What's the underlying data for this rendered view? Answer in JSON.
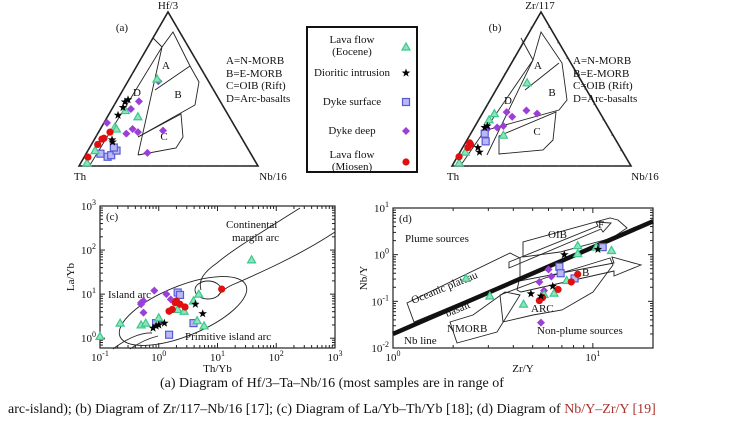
{
  "figure": {
    "caption_line1": "(a) Diagram of Hf/3–Ta–Nb/16 (most samples are in range of",
    "caption_line2_prefix": "arc-island); (b) Diagram of Zr/117–Nb/16 [17]; (c) Diagram of La/Yb–Th/Yb [18]; (d) Diagram of ",
    "caption_line2_highlight": "Nb/Y–Zr/Y [19]"
  },
  "colors": {
    "eocene": "#3cc88c",
    "diorite": "#000000",
    "dyke_surface": "#5a5ad8",
    "dyke_deep": "#9b3fd6",
    "miosen": "#e01010"
  },
  "legend": {
    "items": [
      {
        "key": "eocene",
        "line1": "Lava flow",
        "line2": "(Eocene)",
        "marker": "triangle"
      },
      {
        "key": "diorite",
        "line1": "Dioritic intrusion",
        "line2": "",
        "marker": "star"
      },
      {
        "key": "dyke_surface",
        "line1": "Dyke surface",
        "line2": "",
        "marker": "square"
      },
      {
        "key": "dyke_deep",
        "line1": "Dyke deep",
        "line2": "",
        "marker": "diamond"
      },
      {
        "key": "miosen",
        "line1": "Lava flow",
        "line2": "(Miosen)",
        "marker": "circle"
      }
    ]
  },
  "chart_data": [
    {
      "type": "ternary",
      "panel": "(a)",
      "apex_top": "Hf/3",
      "apex_left": "Th",
      "apex_right": "Nb/16",
      "point_format": [
        "Hf/3 fraction",
        "Nb/16 fraction"
      ],
      "key": [
        "A=N-MORB",
        "B=E-MORB",
        "C=OIB (Rift)",
        "D=Arc-basalts"
      ],
      "field_labels": [
        "A",
        "B",
        "C",
        "D"
      ],
      "series": {
        "eocene": [
          [
            0.25,
            0.075
          ],
          [
            0.32,
            0.17
          ],
          [
            0.565,
            0.155
          ],
          [
            0.1,
            0.04
          ],
          [
            0.02,
            0.035
          ],
          [
            0.36,
            0.08
          ],
          [
            0.24,
            0.09
          ]
        ],
        "diorite": [
          [
            0.416,
            0.05
          ],
          [
            0.43,
            0.06
          ],
          [
            0.33,
            0.054
          ],
          [
            0.156,
            0.11
          ],
          [
            0.38,
            0.057
          ],
          [
            0.17,
            0.1
          ]
        ],
        "dyke_surface": [
          [
            0.06,
            0.13
          ],
          [
            0.07,
            0.145
          ],
          [
            0.1,
            0.16
          ],
          [
            0.12,
            0.135
          ],
          [
            0.08,
            0.08
          ]
        ],
        "dyke_deep": [
          [
            0.55,
            0.17
          ],
          [
            0.42,
            0.126
          ],
          [
            0.37,
            0.106
          ],
          [
            0.28,
            0.017
          ],
          [
            0.21,
            0.16
          ],
          [
            0.24,
            0.18
          ],
          [
            0.22,
            0.22
          ],
          [
            0.23,
            0.355
          ],
          [
            0.085,
            0.34
          ],
          [
            0.12,
            0.14
          ]
        ],
        "miosen": [
          [
            0.22,
            0.064
          ],
          [
            0.175,
            0.041
          ],
          [
            0.14,
            0.035
          ],
          [
            0.058,
            0.021
          ],
          [
            0.18,
            0.05
          ]
        ]
      }
    },
    {
      "type": "ternary",
      "panel": "(b)",
      "apex_top": "Zr/117",
      "apex_left": "Th",
      "apex_right": "Nb/16",
      "point_format": [
        "Zr/117 fraction",
        "Nb/16 fraction"
      ],
      "key": [
        "A=N-MORB",
        "B=E-MORB",
        "C=OIB (Rift)",
        "D=Arc-basalts"
      ],
      "field_labels": [
        "A",
        "B",
        "C",
        "D"
      ],
      "series": {
        "eocene": [
          [
            0.54,
            0.155
          ],
          [
            0.34,
            0.07
          ],
          [
            0.2,
            0.19
          ],
          [
            0.09,
            0.03
          ],
          [
            0.02,
            0.03
          ],
          [
            0.3,
            0.06
          ]
        ],
        "diorite": [
          [
            0.25,
            0.06
          ],
          [
            0.09,
            0.11
          ],
          [
            0.12,
            0.086
          ],
          [
            0.26,
            0.07
          ]
        ],
        "dyke_surface": [
          [
            0.21,
            0.08
          ],
          [
            0.16,
            0.11
          ]
        ],
        "dyke_deep": [
          [
            0.35,
            0.134
          ],
          [
            0.36,
            0.24
          ],
          [
            0.34,
            0.31
          ],
          [
            0.32,
            0.18
          ],
          [
            0.25,
            0.13
          ],
          [
            0.24,
            0.08
          ],
          [
            0.26,
            0.16
          ]
        ],
        "miosen": [
          [
            0.15,
            0.025
          ],
          [
            0.12,
            0.03
          ],
          [
            0.06,
            0.01
          ],
          [
            0.14,
            0.035
          ]
        ]
      }
    },
    {
      "type": "scatter",
      "panel": "(c)",
      "xlabel": "Th/Yb",
      "ylabel": "La/Yb",
      "xscale": "log",
      "yscale": "log",
      "xlim": [
        0.1,
        1000
      ],
      "ylim": [
        0.6,
        1000
      ],
      "xtick_exponents": [
        -1,
        0,
        1,
        2,
        3
      ],
      "ytick_exponents": [
        0,
        1,
        2,
        3
      ],
      "tick_base": "10",
      "annotations": [
        "Continental",
        "margin arc",
        "Island arc",
        "Primitive island arc"
      ],
      "series": {
        "eocene": [
          [
            0.1,
            1.1
          ],
          [
            0.22,
            2.2
          ],
          [
            38,
            60
          ],
          [
            0.5,
            2
          ],
          [
            0.6,
            2.2
          ],
          [
            1.0,
            2.9
          ],
          [
            2.1,
            4.5
          ],
          [
            2.7,
            4.1
          ],
          [
            3.9,
            7
          ],
          [
            4.8,
            10
          ],
          [
            4.5,
            2.5
          ],
          [
            5.9,
            1.9
          ]
        ],
        "diorite": [
          [
            0.8,
            1.7
          ],
          [
            1.0,
            2
          ],
          [
            1.25,
            2.2
          ],
          [
            4.2,
            5.9
          ],
          [
            5.6,
            3.6
          ],
          [
            0.9,
            1.9
          ]
        ],
        "dyke_surface": [
          [
            1.5,
            1.2
          ],
          [
            2.1,
            10.9
          ],
          [
            2.3,
            9.6
          ],
          [
            3.9,
            2.2
          ],
          [
            0.9,
            2.2
          ]
        ],
        "dyke_deep": [
          [
            0.5,
            6.4
          ],
          [
            0.55,
            7
          ],
          [
            0.84,
            12
          ],
          [
            1.35,
            10
          ],
          [
            1.6,
            7.6
          ],
          [
            0.55,
            3.8
          ],
          [
            1.05,
            2.4
          ],
          [
            0.5,
            5.9
          ]
        ],
        "miosen": [
          [
            11.8,
            13
          ],
          [
            1.9,
            6.4
          ],
          [
            1.5,
            4.1
          ],
          [
            1.7,
            4.5
          ],
          [
            2.3,
            5.9
          ],
          [
            2.8,
            5.1
          ],
          [
            2.0,
            7
          ]
        ]
      }
    },
    {
      "type": "scatter",
      "panel": "(d)",
      "xlabel": "Zr/Y",
      "ylabel": "Nb/Y",
      "xscale": "log",
      "yscale": "log",
      "xlim": [
        1,
        20
      ],
      "ylim": [
        0.01,
        10
      ],
      "xtick_exponents": [
        0,
        1
      ],
      "ytick_exponents": [
        -2,
        -1,
        0,
        1
      ],
      "tick_base": "10",
      "annotations": [
        "Plume sources",
        "OIB",
        "F",
        "Oceanic plateau",
        "basalt",
        "NMORB",
        "ARC",
        "Non-plume sources",
        "Nb line",
        "B"
      ],
      "nb_line": [
        [
          1,
          0.02
        ],
        [
          20,
          5.2
        ]
      ],
      "series": {
        "eocene": [
          [
            2.32,
            0.31
          ],
          [
            3.05,
            0.13
          ],
          [
            4.5,
            0.087
          ],
          [
            8.4,
            1.56
          ],
          [
            8.4,
            1.05
          ],
          [
            10.4,
            1.45
          ],
          [
            12.4,
            1.23
          ],
          [
            7.4,
            0.28
          ],
          [
            5.7,
            0.14
          ],
          [
            6.4,
            0.15
          ]
        ],
        "diorite": [
          [
            7.2,
            1.0
          ],
          [
            4.9,
            0.145
          ],
          [
            5.5,
            0.13
          ],
          [
            6.3,
            0.21
          ],
          [
            10.6,
            1.3
          ]
        ],
        "dyke_surface": [
          [
            6.8,
            0.55
          ],
          [
            6.9,
            0.4
          ],
          [
            11.2,
            1.45
          ],
          [
            8.1,
            0.31
          ]
        ],
        "dyke_deep": [
          [
            6.0,
            0.48
          ],
          [
            6.2,
            0.34
          ],
          [
            5.4,
            0.26
          ],
          [
            5.5,
            0.035
          ],
          [
            5.7,
            0.17
          ]
        ],
        "miosen": [
          [
            5.4,
            0.104
          ],
          [
            6.7,
            0.18
          ],
          [
            8.4,
            0.38
          ],
          [
            7.8,
            0.26
          ],
          [
            5.6,
            0.12
          ]
        ]
      }
    }
  ]
}
